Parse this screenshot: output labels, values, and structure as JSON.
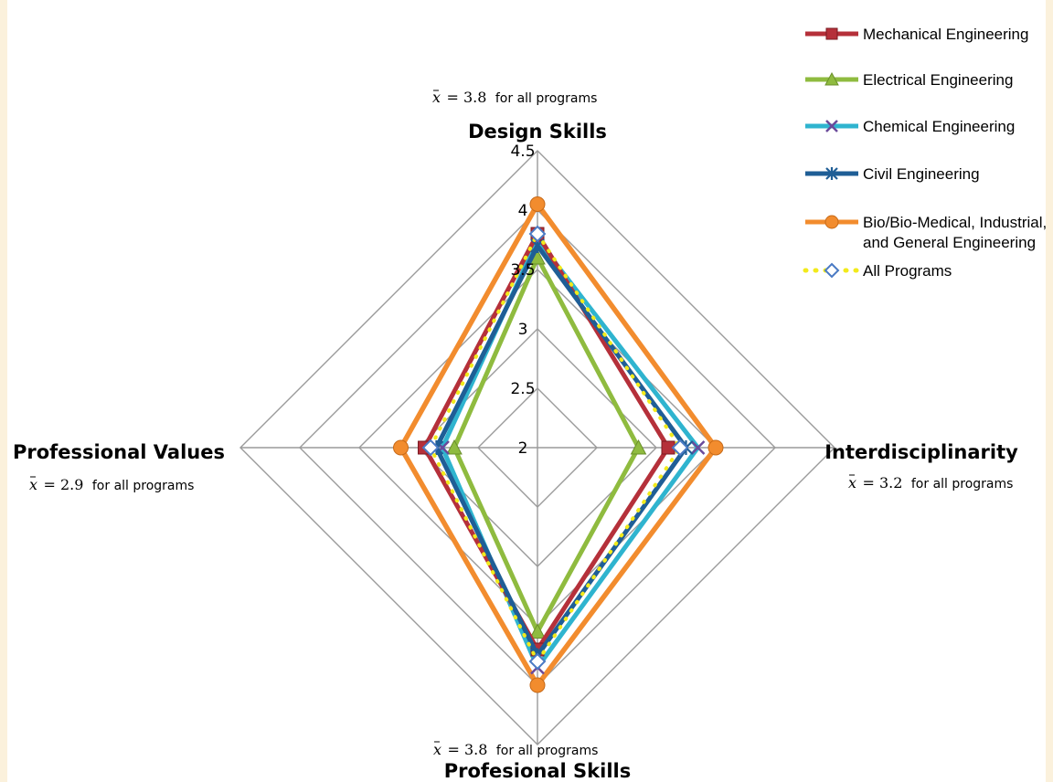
{
  "colors": {
    "background": "#fbf1dc",
    "grid": "#9a9a9a"
  },
  "chart_data": {
    "type": "radar",
    "axes": [
      "Design Skills",
      "Interdisciplinarity",
      "Profesional Skills",
      "Professional Values"
    ],
    "axis_titles": {
      "top": "Design Skills",
      "right": "Interdisciplinarity",
      "bottom": "Profesional Skills",
      "left": "Professional Values"
    },
    "rlim": [
      2,
      4.5
    ],
    "ticks": [
      "2",
      "2.5",
      "3",
      "3.5",
      "4",
      "4.5"
    ],
    "tick_values": [
      2,
      2.5,
      3,
      3.5,
      4,
      4.5
    ],
    "grid": true,
    "legend_position": "top-right",
    "annotations": {
      "top": {
        "symbol": "x",
        "eq": "= 3.8",
        "text": "for all programs"
      },
      "right": {
        "symbol": "x",
        "eq": "= 3.2",
        "text": "for all programs"
      },
      "bottom": {
        "symbol": "x",
        "eq": "= 3.8",
        "text": "for all programs"
      },
      "left": {
        "symbol": "x",
        "eq": "= 2.9",
        "text": "for all programs"
      }
    },
    "series": [
      {
        "name": "Mechanical Engineering",
        "color": "#b5303a",
        "marker": "square",
        "style": "solid",
        "values": [
          3.8,
          3.1,
          3.7,
          2.95
        ]
      },
      {
        "name": "Electrical Engineering",
        "color": "#8fbb3f",
        "marker": "triangle",
        "style": "solid",
        "values": [
          3.6,
          2.85,
          3.55,
          2.7
        ]
      },
      {
        "name": "Chemical Engineering",
        "color": "#2fb4cf",
        "marker": "x",
        "style": "solid",
        "values": [
          3.75,
          3.35,
          3.85,
          2.8
        ]
      },
      {
        "name": "Civil Engineering",
        "color": "#1f5e96",
        "marker": "star",
        "style": "solid",
        "values": [
          3.7,
          3.25,
          3.75,
          2.85
        ]
      },
      {
        "name": "Bio/Bio-Medical, Industrial, and General Engineering",
        "name_lines": [
          "Bio/Bio-Medical, Industrial,",
          "and General Engineering"
        ],
        "color": "#f28c2e",
        "marker": "circle",
        "style": "solid",
        "values": [
          4.05,
          3.5,
          4.0,
          3.15
        ]
      },
      {
        "name": "All Programs",
        "color": "#f2ea1c",
        "marker_color": "#4a7ac4",
        "marker": "diamond",
        "style": "dotted",
        "values": [
          3.8,
          3.2,
          3.8,
          2.9
        ]
      }
    ]
  }
}
